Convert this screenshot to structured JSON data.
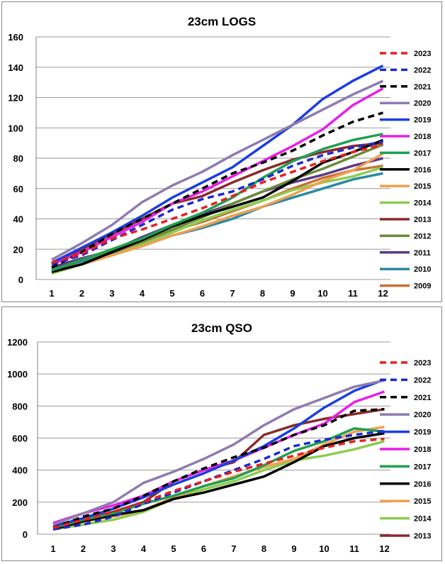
{
  "chart_data": [
    {
      "type": "line",
      "title": "23cm LOGS",
      "xlabel": "",
      "ylabel": "",
      "categories": [
        "1",
        "2",
        "3",
        "4",
        "5",
        "6",
        "7",
        "8",
        "9",
        "10",
        "11",
        "12"
      ],
      "ylim": [
        0,
        160
      ],
      "yticks": [
        0,
        20,
        40,
        60,
        80,
        100,
        120,
        140,
        160
      ],
      "grid": true,
      "legend_position": "right",
      "series": [
        {
          "name": "2023",
          "color": "#e81f1f",
          "dashed": true,
          "values": [
            11,
            17,
            27,
            33,
            40,
            47,
            55,
            64,
            71,
            78,
            84,
            89
          ]
        },
        {
          "name": "2022",
          "color": "#1a2ad0",
          "dashed": true,
          "values": [
            10,
            16,
            26,
            36,
            46,
            53,
            58,
            66,
            75,
            82,
            87,
            91
          ]
        },
        {
          "name": "2021",
          "color": "#000000",
          "dashed": true,
          "values": [
            8,
            18,
            30,
            40,
            50,
            60,
            70,
            77,
            85,
            95,
            104,
            110
          ]
        },
        {
          "name": "2020",
          "color": "#8e7cb0",
          "dashed": false,
          "values": [
            13,
            24,
            36,
            51,
            62,
            71,
            82,
            92,
            102,
            112,
            122,
            131
          ]
        },
        {
          "name": "2019",
          "color": "#1a3ee0",
          "dashed": false,
          "values": [
            11,
            21,
            31,
            42,
            54,
            64,
            74,
            88,
            102,
            119,
            131,
            141
          ]
        },
        {
          "name": "2018",
          "color": "#e81fe8",
          "dashed": false,
          "values": [
            10,
            18,
            28,
            38,
            50,
            58,
            68,
            78,
            88,
            99,
            115,
            126
          ]
        },
        {
          "name": "2017",
          "color": "#1fa050",
          "dashed": false,
          "values": [
            6,
            13,
            20,
            27,
            36,
            44,
            54,
            67,
            78,
            86,
            92,
            96
          ]
        },
        {
          "name": "2016",
          "color": "#000000",
          "dashed": false,
          "values": [
            5,
            10,
            18,
            26,
            35,
            42,
            48,
            54,
            65,
            77,
            84,
            92
          ]
        },
        {
          "name": "2015",
          "color": "#f0a050",
          "dashed": false,
          "values": [
            5,
            10,
            16,
            22,
            29,
            35,
            42,
            48,
            56,
            65,
            72,
            83
          ]
        },
        {
          "name": "2014",
          "color": "#8ccc50",
          "dashed": false,
          "values": [
            4,
            10,
            16,
            23,
            31,
            39,
            46,
            52,
            59,
            64,
            68,
            74
          ]
        },
        {
          "name": "2013",
          "color": "#8a2a2a",
          "dashed": false,
          "values": [
            10,
            20,
            30,
            40,
            50,
            55,
            64,
            72,
            79,
            84,
            88,
            90
          ]
        },
        {
          "name": "2012",
          "color": "#6a8a3a",
          "dashed": false,
          "values": [
            6,
            13,
            19,
            25,
            33,
            41,
            50,
            58,
            66,
            73,
            81,
            89
          ]
        },
        {
          "name": "2011",
          "color": "#5a3a8a",
          "dashed": false,
          "values": [
            8,
            14,
            19,
            28,
            36,
            43,
            50,
            58,
            64,
            69,
            75,
            80
          ]
        },
        {
          "name": "2010",
          "color": "#2a8aa0",
          "dashed": false,
          "values": [
            7,
            12,
            17,
            22,
            29,
            34,
            40,
            48,
            54,
            60,
            66,
            70
          ]
        },
        {
          "name": "2009",
          "color": "#c87030",
          "dashed": false,
          "values": [
            6,
            12,
            18,
            24,
            32,
            38,
            45,
            52,
            60,
            67,
            72,
            75
          ]
        }
      ]
    },
    {
      "type": "line",
      "title": "23cm QSO",
      "xlabel": "",
      "ylabel": "",
      "categories": [
        "1",
        "2",
        "3",
        "4",
        "5",
        "6",
        "7",
        "8",
        "9",
        "10",
        "11",
        "12"
      ],
      "ylim": [
        0,
        1200
      ],
      "yticks": [
        0,
        200,
        400,
        600,
        800,
        1000,
        1200
      ],
      "grid": true,
      "legend_position": "right",
      "series": [
        {
          "name": "2023",
          "color": "#e81f1f",
          "dashed": true,
          "values": [
            40,
            90,
            140,
            200,
            270,
            330,
            390,
            440,
            490,
            540,
            580,
            595
          ]
        },
        {
          "name": "2022",
          "color": "#1a2ad0",
          "dashed": true,
          "values": [
            30,
            60,
            110,
            190,
            260,
            330,
            400,
            470,
            550,
            590,
            620,
            645
          ]
        },
        {
          "name": "2021",
          "color": "#000000",
          "dashed": true,
          "values": [
            40,
            110,
            160,
            240,
            330,
            410,
            480,
            540,
            620,
            680,
            770,
            780
          ]
        },
        {
          "name": "2020",
          "color": "#8e7cb0",
          "dashed": false,
          "values": [
            60,
            130,
            200,
            320,
            390,
            470,
            560,
            680,
            780,
            850,
            920,
            960
          ]
        },
        {
          "name": "2019",
          "color": "#1a3ee0",
          "dashed": false,
          "values": [
            50,
            100,
            160,
            230,
            310,
            380,
            460,
            550,
            660,
            790,
            895,
            965
          ]
        },
        {
          "name": "2018",
          "color": "#e81fe8",
          "dashed": false,
          "values": [
            70,
            130,
            180,
            240,
            330,
            400,
            460,
            540,
            620,
            690,
            825,
            890
          ]
        },
        {
          "name": "2017",
          "color": "#1fa050",
          "dashed": false,
          "values": [
            40,
            90,
            130,
            190,
            240,
            300,
            350,
            430,
            520,
            580,
            660,
            640
          ]
        },
        {
          "name": "2016",
          "color": "#000000",
          "dashed": false,
          "values": [
            30,
            80,
            120,
            150,
            220,
            260,
            310,
            360,
            450,
            550,
            600,
            630
          ]
        },
        {
          "name": "2015",
          "color": "#f0a050",
          "dashed": false,
          "values": [
            40,
            80,
            110,
            150,
            230,
            300,
            360,
            420,
            470,
            560,
            640,
            670
          ]
        },
        {
          "name": "2014",
          "color": "#8ccc50",
          "dashed": false,
          "values": [
            30,
            60,
            90,
            140,
            220,
            280,
            330,
            400,
            460,
            490,
            530,
            580
          ]
        },
        {
          "name": "2013",
          "color": "#8a2a2a",
          "dashed": false,
          "values": [
            40,
            90,
            140,
            200,
            330,
            400,
            450,
            620,
            680,
            720,
            750,
            780
          ]
        }
      ]
    }
  ]
}
